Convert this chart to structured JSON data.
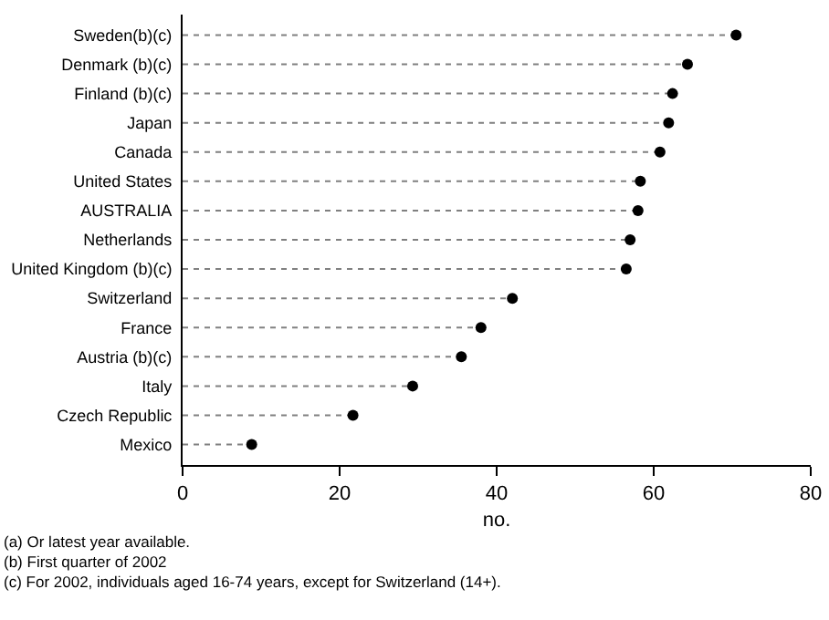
{
  "chart_data": {
    "type": "lollipop",
    "orientation": "horizontal",
    "xlabel": "no.",
    "categories": [
      "Sweden(b)(c)",
      "Denmark (b)(c)",
      "Finland (b)(c)",
      "Japan",
      "Canada",
      "United States",
      "AUSTRALIA",
      "Netherlands",
      "United Kingdom (b)(c)",
      "Switzerland",
      "France",
      "Austria (b)(c)",
      "Italy",
      "Czech Republic",
      "Mexico"
    ],
    "values": [
      70.5,
      64.3,
      62.4,
      61.9,
      60.8,
      58.3,
      58.0,
      57.0,
      56.5,
      42.0,
      38.0,
      35.5,
      29.3,
      21.7,
      8.8
    ],
    "color": "#000000",
    "marker": "circle",
    "line_style": "dashed",
    "xlim": [
      0,
      80
    ],
    "xticks": [
      0,
      20,
      40,
      60,
      80
    ],
    "annotations": [
      "(a) Or latest year available.",
      "(b) First quarter of 2002",
      "(c) For 2002, individuals aged 16-74 years, except for Switzerland (14+)."
    ]
  }
}
